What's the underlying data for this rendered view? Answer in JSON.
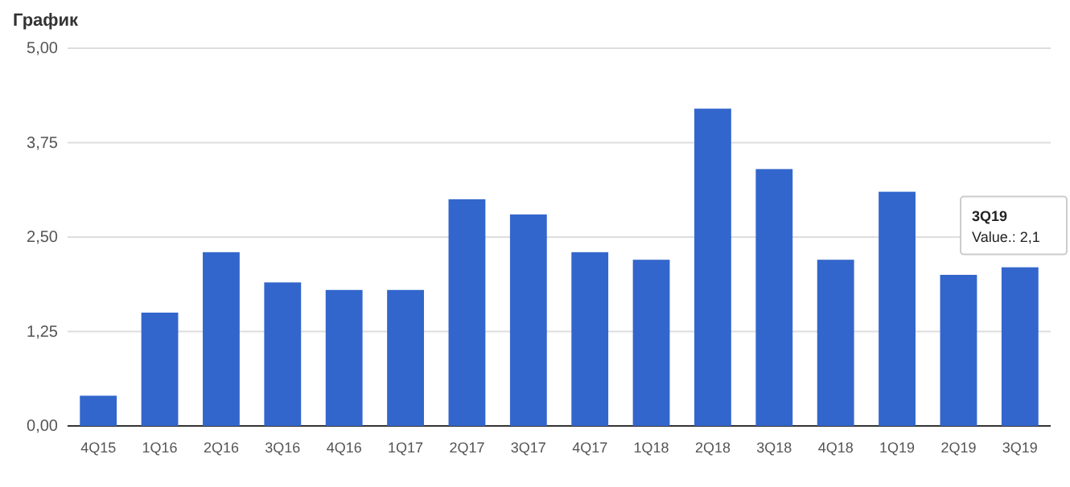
{
  "chart_data": {
    "type": "bar",
    "title": "График",
    "categories": [
      "4Q15",
      "1Q16",
      "2Q16",
      "3Q16",
      "4Q16",
      "1Q17",
      "2Q17",
      "3Q17",
      "4Q17",
      "1Q18",
      "2Q18",
      "3Q18",
      "4Q18",
      "1Q19",
      "2Q19",
      "3Q19"
    ],
    "values": [
      0.4,
      1.5,
      2.3,
      1.9,
      1.8,
      1.8,
      3.0,
      2.8,
      2.3,
      2.2,
      4.2,
      3.4,
      2.2,
      3.1,
      2.0,
      2.1
    ],
    "color": "#3366cc",
    "ylim": [
      0,
      5
    ],
    "yticks": [
      {
        "value": 0,
        "label": "0,00"
      },
      {
        "value": 1.25,
        "label": "1,25"
      },
      {
        "value": 2.5,
        "label": "2,50"
      },
      {
        "value": 3.75,
        "label": "3,75"
      },
      {
        "value": 5,
        "label": "5,00"
      }
    ],
    "grid": "y",
    "annotations": [
      {
        "text": "3Q19\nValue.: 2,1",
        "x": "3Q19",
        "y": 2.1
      }
    ]
  }
}
